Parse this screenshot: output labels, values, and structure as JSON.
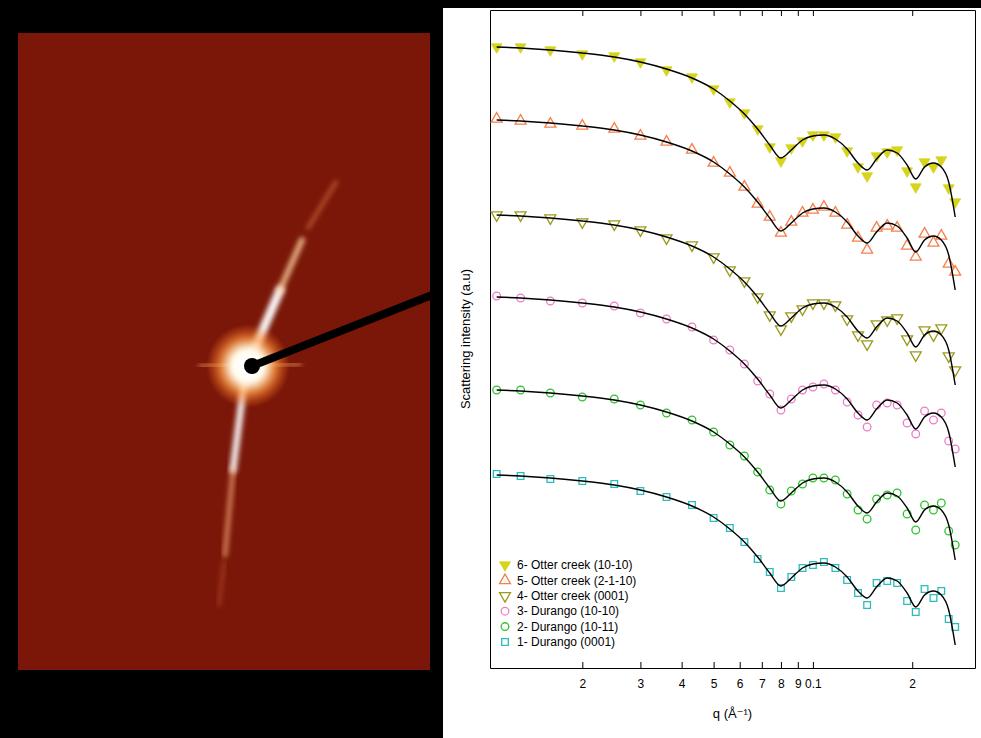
{
  "chart_data": {
    "type": "scatter",
    "xlabel": "q (Å⁻¹)",
    "ylabel": "Scattering intensity (a.u)",
    "log": "x",
    "tick_labels": "x",
    "legend": "lower left",
    "xlim": [
      0.0105,
      0.31
    ],
    "ylim": [
      0,
      658
    ],
    "xticks": [
      {
        "value": 0.02,
        "label": "2"
      },
      {
        "value": 0.03,
        "label": "3"
      },
      {
        "value": 0.04,
        "label": "4"
      },
      {
        "value": 0.05,
        "label": "5"
      },
      {
        "value": 0.06,
        "label": "6"
      },
      {
        "value": 0.07,
        "label": "7"
      },
      {
        "value": 0.08,
        "label": "8"
      },
      {
        "value": 0.09,
        "label": "9"
      },
      0.1,
      {
        "value": 0.2,
        "label": "2"
      }
    ],
    "x": [
      0.011,
      0.013,
      0.016,
      0.02,
      0.025,
      0.03,
      0.036,
      0.043,
      0.05,
      0.056,
      0.062,
      0.068,
      0.074,
      0.08,
      0.086,
      0.093,
      0.1,
      0.108,
      0.117,
      0.127,
      0.137,
      0.146,
      0.156,
      0.168,
      0.18,
      0.193,
      0.205,
      0.218,
      0.232,
      0.245,
      0.258,
      0.27
    ],
    "series": [
      {
        "name": "6- Otter creek (10-10)",
        "color": "#d6d41c",
        "marker": "triangle-down-filled",
        "values": [
          621,
          621,
          618,
          614,
          612,
          606,
          598,
          591,
          579,
          566,
          555,
          539,
          521,
          507,
          520,
          527,
          533,
          533,
          531,
          517,
          501,
          492,
          512,
          516,
          518,
          497,
          481,
          506,
          501,
          508,
          480,
          466
        ],
        "fit": [
          621,
          620,
          618,
          615,
          611,
          606,
          599,
          590,
          579,
          567,
          554,
          539,
          523,
          510,
          518,
          528,
          532,
          533,
          529,
          519,
          505,
          498,
          509,
          518,
          515,
          503,
          489,
          501,
          505,
          501,
          486,
          451
        ]
      },
      {
        "name": "5- Otter creek (2-1-10)",
        "color": "#f4804c",
        "marker": "triangle-up",
        "values": [
          549,
          547,
          544,
          542,
          539,
          532,
          526,
          518,
          505,
          495,
          481,
          464,
          451,
          435,
          446,
          455,
          458,
          461,
          455,
          443,
          430,
          418,
          440,
          442,
          440,
          422,
          411,
          434,
          425,
          432,
          404,
          396
        ],
        "fit": [
          548,
          547,
          545,
          542,
          538,
          533,
          526,
          517,
          506,
          494,
          481,
          466,
          450,
          437,
          445,
          455,
          459,
          460,
          456,
          446,
          432,
          425,
          436,
          445,
          442,
          430,
          416,
          428,
          432,
          428,
          413,
          378
        ]
      },
      {
        "name": "4- Otter creek (0001)",
        "color": "#9c9a1e",
        "marker": "triangle-down",
        "values": [
          453,
          453,
          450,
          446,
          444,
          438,
          430,
          423,
          411,
          398,
          387,
          371,
          353,
          339,
          352,
          359,
          365,
          365,
          363,
          349,
          333,
          324,
          344,
          348,
          350,
          329,
          313,
          338,
          333,
          340,
          312,
          298
        ],
        "fit": [
          453,
          452,
          450,
          447,
          443,
          438,
          431,
          422,
          411,
          399,
          386,
          371,
          355,
          342,
          350,
          360,
          364,
          365,
          361,
          351,
          337,
          330,
          341,
          350,
          347,
          335,
          321,
          333,
          337,
          333,
          318,
          283
        ]
      },
      {
        "name": "3- Durango (10-10)",
        "color": "#ee7cc6",
        "marker": "circle",
        "values": [
          372,
          370,
          367,
          365,
          362,
          355,
          349,
          341,
          328,
          318,
          304,
          287,
          274,
          258,
          269,
          278,
          281,
          284,
          278,
          266,
          253,
          241,
          263,
          265,
          263,
          245,
          234,
          257,
          248,
          255,
          227,
          219
        ],
        "fit": [
          371,
          370,
          368,
          365,
          361,
          356,
          349,
          340,
          329,
          317,
          304,
          289,
          273,
          260,
          268,
          278,
          282,
          283,
          279,
          269,
          255,
          248,
          259,
          268,
          265,
          253,
          239,
          251,
          255,
          251,
          236,
          201
        ]
      },
      {
        "name": "2- Durango (10-11)",
        "color": "#2cc42c",
        "marker": "circle",
        "values": [
          278,
          278,
          275,
          271,
          269,
          263,
          255,
          248,
          236,
          223,
          212,
          196,
          178,
          164,
          177,
          184,
          190,
          190,
          188,
          174,
          158,
          149,
          169,
          173,
          175,
          154,
          138,
          163,
          158,
          165,
          137,
          123
        ],
        "fit": [
          278,
          277,
          275,
          272,
          268,
          263,
          256,
          247,
          236,
          224,
          211,
          196,
          180,
          167,
          175,
          185,
          189,
          190,
          186,
          176,
          162,
          155,
          166,
          175,
          172,
          160,
          146,
          158,
          162,
          158,
          143,
          108
        ]
      },
      {
        "name": "1- Durango (0001)",
        "color": "#2cbcbc",
        "marker": "square",
        "values": [
          194,
          192,
          189,
          187,
          184,
          177,
          171,
          163,
          150,
          140,
          126,
          109,
          96,
          80,
          91,
          100,
          103,
          106,
          100,
          88,
          75,
          63,
          85,
          87,
          85,
          67,
          56,
          79,
          70,
          77,
          49,
          41
        ],
        "fit": [
          193,
          192,
          190,
          187,
          183,
          178,
          171,
          162,
          151,
          139,
          126,
          111,
          95,
          82,
          90,
          100,
          104,
          105,
          101,
          91,
          77,
          70,
          81,
          90,
          87,
          75,
          61,
          73,
          77,
          73,
          58,
          23
        ]
      }
    ]
  }
}
